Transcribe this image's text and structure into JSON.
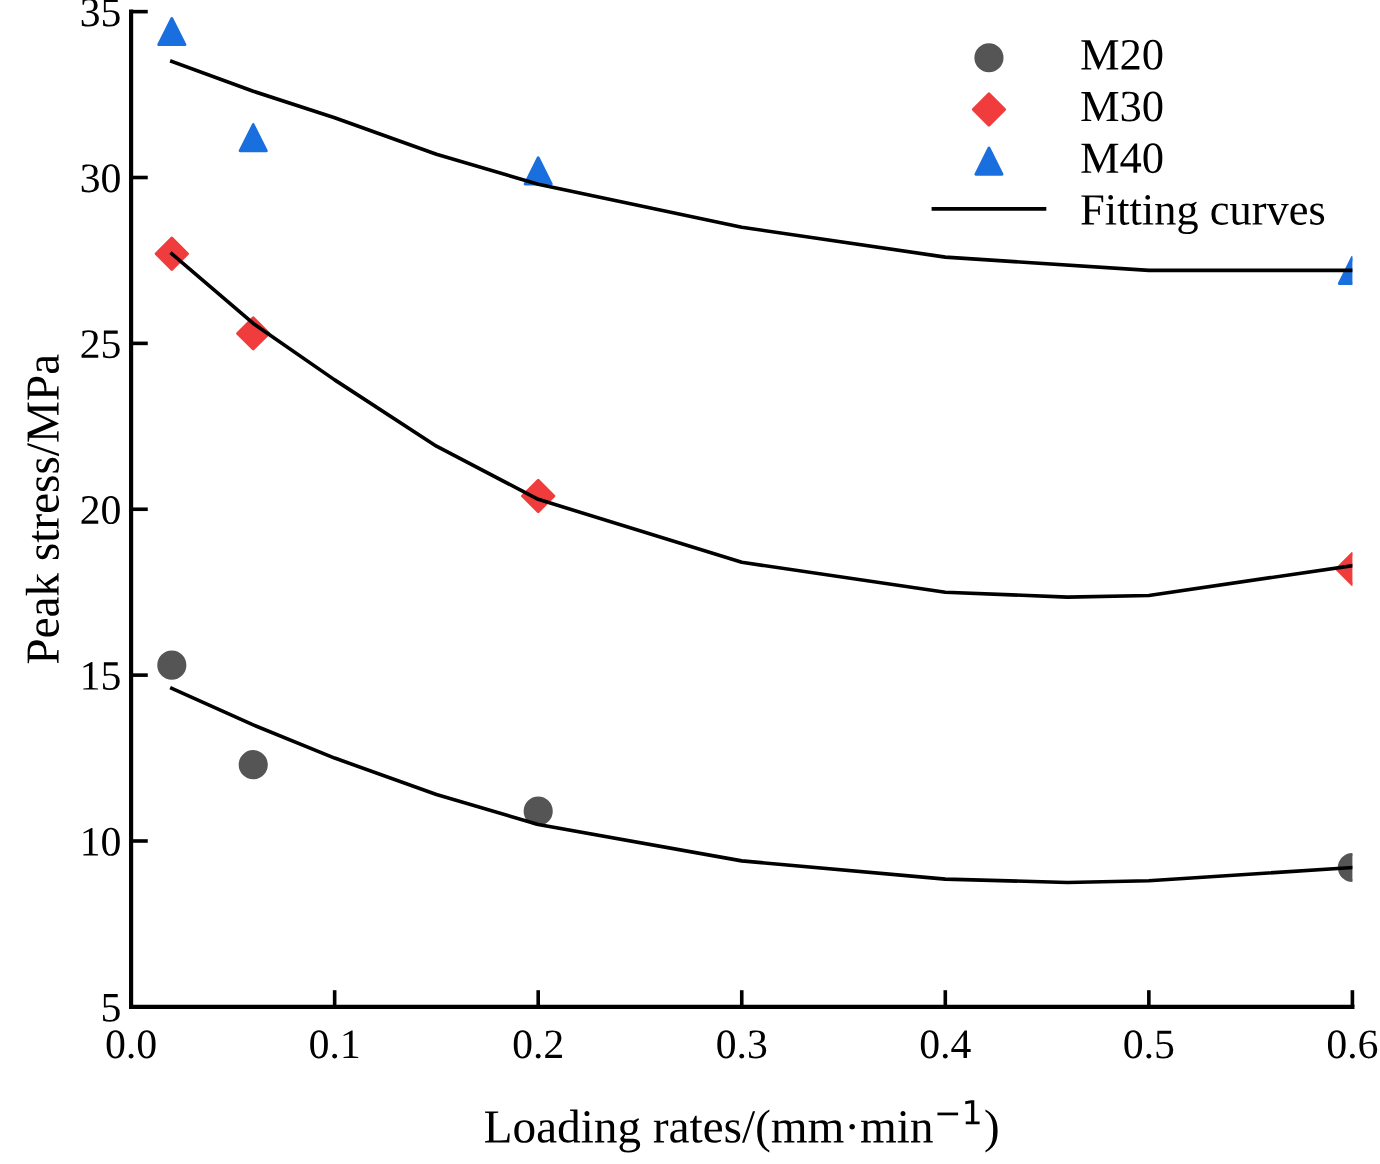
{
  "chart_data": {
    "type": "scatter",
    "xlabel": "Loading rates/(mm·min$^{−1}$)",
    "ylabel": "Peak stress/MPa",
    "xlim": [
      0,
      0.6
    ],
    "ylim": [
      5,
      35
    ],
    "xticks": [
      {
        "value": 0,
        "label": "0.0"
      },
      0.1,
      0.2,
      0.3,
      0.4,
      0.5,
      0.6
    ],
    "yticks": [
      5,
      10,
      15,
      20,
      25,
      30,
      35
    ],
    "grid": false,
    "legend": "top right",
    "series": [
      {
        "name": "M20",
        "marker": "circle",
        "color": "#555555",
        "x": [
          0.02,
          0.06,
          0.2,
          0.6
        ],
        "values": [
          15.3,
          12.3,
          10.9,
          9.2
        ]
      },
      {
        "name": "M30",
        "marker": "diamond",
        "color": "#f03c3c",
        "x": [
          0.02,
          0.06,
          0.2,
          0.6
        ],
        "values": [
          27.7,
          25.3,
          20.4,
          18.2
        ]
      },
      {
        "name": "M40",
        "marker": "triangle",
        "color": "#1a6fdf",
        "x": [
          0.02,
          0.06,
          0.2,
          0.6
        ],
        "values": [
          34.4,
          31.2,
          30.2,
          27.2
        ]
      },
      {
        "name": "Fitting curves",
        "type": "line",
        "marker": "none",
        "line_style": "solid",
        "color": "#000000",
        "x": [
          0.02,
          0.06,
          0.1,
          0.15,
          0.2,
          0.3,
          0.4,
          0.5,
          0.6
        ],
        "values": [
          33.5,
          32.6,
          31.8,
          30.7,
          29.8,
          28.5,
          27.6,
          27.2,
          27.2
        ]
      },
      {
        "type": "line",
        "marker": "none",
        "line_style": "solid",
        "color": "#000000",
        "x": [
          0.02,
          0.06,
          0.1,
          0.15,
          0.2,
          0.3,
          0.4,
          0.46,
          0.5,
          0.6
        ],
        "values": [
          27.7,
          25.6,
          23.9,
          21.9,
          20.3,
          18.4,
          17.5,
          17.35,
          17.4,
          18.3
        ]
      },
      {
        "type": "line",
        "marker": "none",
        "line_style": "solid",
        "color": "#000000",
        "x": [
          0.02,
          0.06,
          0.1,
          0.15,
          0.2,
          0.3,
          0.4,
          0.46,
          0.5,
          0.6
        ],
        "values": [
          14.6,
          13.5,
          12.5,
          11.4,
          10.5,
          9.4,
          8.85,
          8.75,
          8.8,
          9.2
        ]
      }
    ]
  }
}
